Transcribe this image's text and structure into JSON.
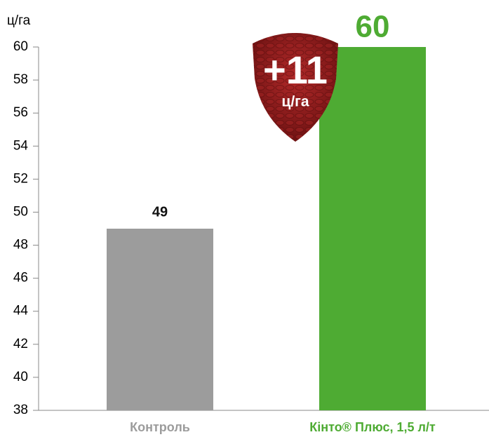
{
  "chart_data": {
    "type": "bar",
    "y_label": "ц/га",
    "categories": [
      "Контроль",
      "Кінто® Плюс, 1,5 л/т"
    ],
    "values": [
      49,
      60
    ],
    "colors": [
      "#9c9c9c",
      "#4eab33"
    ],
    "ylim": [
      38,
      60
    ],
    "yticks": [
      38,
      40,
      42,
      44,
      46,
      48,
      50,
      52,
      54,
      56,
      58,
      60
    ],
    "annotation": {
      "text": "+11",
      "unit": "ц/га"
    }
  }
}
